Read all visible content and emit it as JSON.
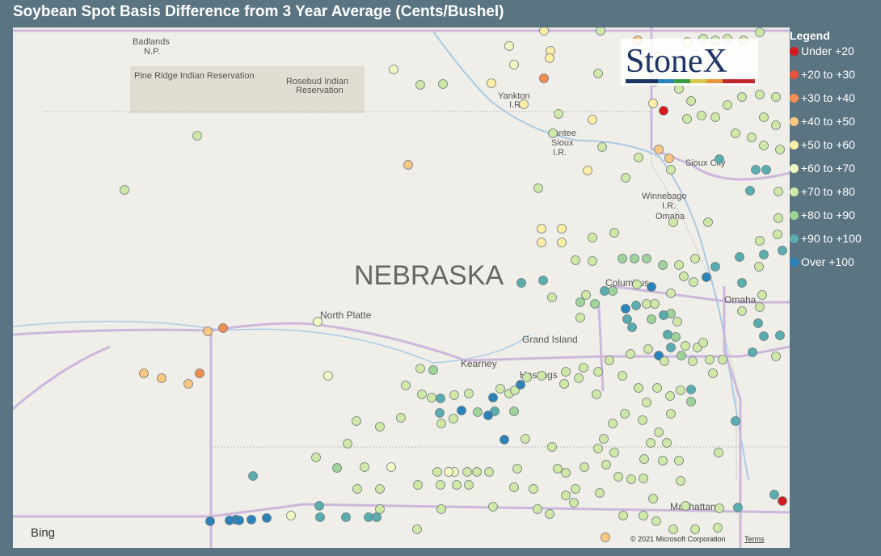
{
  "header": {
    "title": "Soybean Spot Basis Difference from 3 Year Average (Cents/Bushel)"
  },
  "legend": {
    "title": "Legend",
    "items": [
      {
        "label": "Under +20",
        "color": "#d7191c"
      },
      {
        "label": "+20 to +30",
        "color": "#e8553a"
      },
      {
        "label": "+30 to +40",
        "color": "#f28e4f"
      },
      {
        "label": "+40 to +50",
        "color": "#f9c77f"
      },
      {
        "label": "+50 to +60",
        "color": "#fdeea6"
      },
      {
        "label": "+60 to +70",
        "color": "#f2f8c2"
      },
      {
        "label": "+70 to +80",
        "color": "#cfe8a6"
      },
      {
        "label": "+80 to +90",
        "color": "#9fd39a"
      },
      {
        "label": "+90 to +100",
        "color": "#5aadae"
      },
      {
        "label": "Over +100",
        "color": "#2b83ba"
      }
    ]
  },
  "map": {
    "state": "NEBRASKA",
    "places": [
      "Badlands",
      "N.P.",
      "Pine Ridge Indian Reservation",
      "Rosebud Indian",
      "Reservation",
      "Yankton",
      "I.R.",
      "Santee",
      "Sioux",
      "I.R.",
      "Sioux City",
      "Winnebago",
      "I.R.",
      "Omaha",
      "North Platte",
      "Columbus",
      "Omaha",
      "Grand Island",
      "Kearney",
      "Hastings",
      "Manhattan"
    ],
    "logo": "StoneX",
    "provider": "Bing",
    "copyright": "© 2021 Microsoft Corporation",
    "terms": "Terms"
  }
}
